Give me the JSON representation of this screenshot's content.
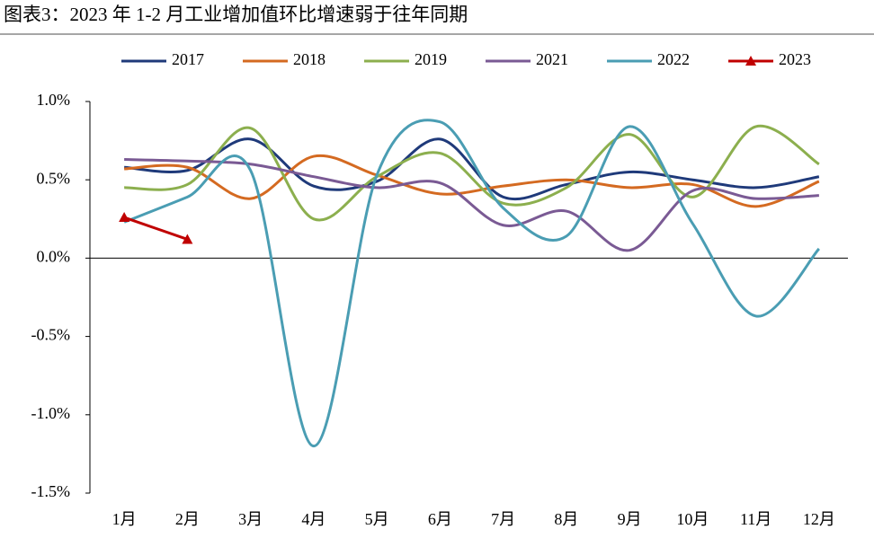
{
  "chart_data": {
    "type": "line",
    "title": "图表3：2023 年 1-2 月工业增加值环比增速弱于往年同期",
    "categories": [
      "1月",
      "2月",
      "3月",
      "4月",
      "5月",
      "6月",
      "7月",
      "8月",
      "9月",
      "10月",
      "11月",
      "12月"
    ],
    "series": [
      {
        "name": "2017",
        "color": "#1f3a7a",
        "values": [
          0.58,
          0.56,
          0.76,
          0.46,
          0.49,
          0.76,
          0.39,
          0.47,
          0.55,
          0.5,
          0.45,
          0.52
        ]
      },
      {
        "name": "2018",
        "color": "#d46a21",
        "values": [
          0.57,
          0.58,
          0.38,
          0.65,
          0.53,
          0.41,
          0.46,
          0.5,
          0.45,
          0.47,
          0.33,
          0.49
        ]
      },
      {
        "name": "2019",
        "color": "#8caf4e",
        "values": [
          0.45,
          0.47,
          0.83,
          0.25,
          0.52,
          0.67,
          0.35,
          0.45,
          0.79,
          0.39,
          0.84,
          0.6
        ]
      },
      {
        "name": "2021",
        "color": "#7a5a94",
        "values": [
          0.63,
          0.62,
          0.6,
          0.52,
          0.45,
          0.48,
          0.21,
          0.3,
          0.05,
          0.43,
          0.38,
          0.4
        ]
      },
      {
        "name": "2022",
        "color": "#4a9db3",
        "values": [
          0.23,
          0.39,
          0.56,
          -1.2,
          0.53,
          0.87,
          0.32,
          0.14,
          0.84,
          0.22,
          -0.37,
          0.06
        ]
      },
      {
        "name": "2023",
        "color": "#c00000",
        "marker": "triangle",
        "values": [
          0.26,
          0.12,
          null,
          null,
          null,
          null,
          null,
          null,
          null,
          null,
          null,
          null
        ]
      }
    ],
    "ylim": [
      -1.5,
      1.0
    ],
    "yticks": [
      {
        "value": -1.5,
        "label": "-1.5%"
      },
      {
        "value": -1.0,
        "label": "-1.0%"
      },
      {
        "value": -0.5,
        "label": "-0.5%"
      },
      {
        "value": 0,
        "label": "0.0%"
      },
      {
        "value": 0.5,
        "label": "0.5%"
      },
      {
        "value": 1.0,
        "label": "1.0%"
      }
    ],
    "legend": "top",
    "smooth": true
  }
}
